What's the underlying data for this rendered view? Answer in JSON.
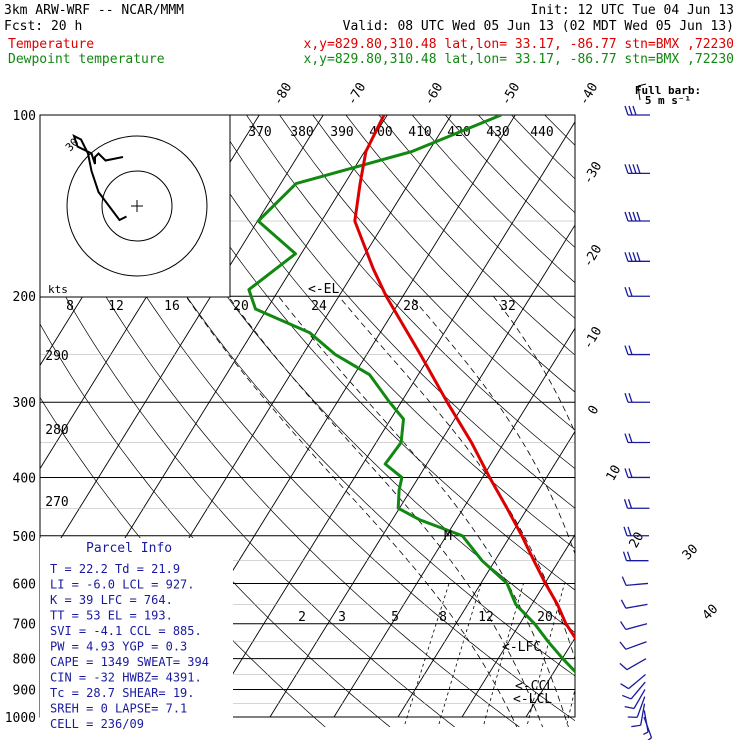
{
  "header": {
    "line1_left": "3km ARW-WRF -- NCAR/MMM",
    "line1_right": "Init: 12 UTC Tue 04 Jun 13",
    "line2_left": "Fcst:    20 h",
    "line2_right": "Valid: 08 UTC Wed 05 Jun 13 (02 MDT Wed 05 Jun 13)",
    "temp_label": "Temperature",
    "temp_loc": "x,y=829.80,310.48   lat,lon= 33.17, -86.77   stn=BMX ,72230",
    "dew_label": "Dewpoint temperature",
    "dew_loc": "x,y=829.80,310.48   lat,lon= 33.17, -86.77   stn=BMX ,72230"
  },
  "colors": {
    "temperature": "#dd0000",
    "dewpoint": "#118811",
    "barbs": "#1a1aa0",
    "header_red": "#dd0000",
    "header_green": "#118811",
    "hodo_text": "#1a1aa0",
    "dashed": "#000000"
  },
  "barb_legend": {
    "line1": "Full barb:",
    "line2": "5 m s⁻¹"
  },
  "hodograph": {
    "units": "kts",
    "ring_label": "30",
    "speed_ticks": [
      "8",
      "12",
      "16",
      "20",
      "24",
      "28",
      "32"
    ],
    "theta_ticks_top": [
      "370",
      "380",
      "390",
      "400",
      "410",
      "420",
      "430",
      "440"
    ],
    "theta_ticks_left": [
      "290",
      "280",
      "270"
    ]
  },
  "mixing_ratio_labels": [
    "2",
    "3",
    "5",
    "8",
    "12",
    "20"
  ],
  "markers": {
    "el": "<-EL",
    "lfc": "<-LFC",
    "ccl": "<-CCL",
    "lcl": "<-LCL",
    "m": "M"
  },
  "parcel_info": {
    "title": "Parcel Info",
    "rows": [
      "T  =   22.2  Td =  21.9",
      "LI =   -6.0  LCL =  927.",
      "K  =     39  LFC =  764.",
      "TT =     53  EL  =  193.",
      "SVI =  -4.1  CCL =  885.",
      "PW =   4.93  YGP =   0.3",
      "CAPE =  1349  SWEAT=  394",
      "CIN =   -32  HWBZ= 4391.",
      "Tc =   28.7  SHEAR=  19.",
      "SREH =     0  LAPSE=  7.1",
      "CELL = 236/09"
    ]
  },
  "chart_data": {
    "type": "line",
    "title": "",
    "xlabel": "",
    "ylabel": "",
    "y_scale": "log-pressure (hPa)",
    "pressure_ticks": [
      100,
      200,
      300,
      400,
      500,
      600,
      700,
      800,
      900,
      1000
    ],
    "isotherm_labels": [
      "-80",
      "-70",
      "-60",
      "-50",
      "-40",
      "-30",
      "-20",
      "-10",
      "0",
      "10",
      "20",
      "30",
      "40"
    ],
    "series": [
      {
        "name": "Temperature",
        "pressure": [
          1000,
          980,
          950,
          925,
          900,
          850,
          800,
          750,
          700,
          650,
          600,
          550,
          500,
          450,
          400,
          350,
          300,
          250,
          200,
          180,
          150,
          130,
          115,
          100
        ],
        "temperature": [
          22.2,
          21.8,
          20.2,
          19.6,
          18.7,
          16.8,
          13.8,
          10.8,
          7.2,
          4.0,
          0.1,
          -3.9,
          -8.2,
          -13.2,
          -18.9,
          -25.1,
          -32.8,
          -41.6,
          -52.6,
          -57.3,
          -64.8,
          -67.6,
          -69.8,
          -70.5
        ]
      },
      {
        "name": "Dewpoint temperature",
        "pressure": [
          1000,
          980,
          950,
          925,
          900,
          850,
          800,
          750,
          700,
          650,
          600,
          550,
          500,
          470,
          450,
          420,
          400,
          380,
          350,
          320,
          300,
          270,
          250,
          230,
          210,
          195,
          170,
          150,
          130,
          115,
          100
        ],
        "dewpoint": [
          21.9,
          21.2,
          19.6,
          18.0,
          15.7,
          14.0,
          10.1,
          6.2,
          2.3,
          -2.5,
          -5.9,
          -12.0,
          -17.5,
          -25.8,
          -30.2,
          -31.8,
          -32.6,
          -36.5,
          -36.1,
          -38.0,
          -41.8,
          -47.6,
          -54.9,
          -61.0,
          -71.8,
          -74.7,
          -70.9,
          -79.9,
          -77.6,
          -62.6,
          -52.2
        ]
      }
    ],
    "wind_barbs": {
      "pressure": [
        1000,
        975,
        950,
        925,
        900,
        875,
        850,
        800,
        750,
        700,
        650,
        600,
        550,
        500,
        450,
        400,
        350,
        300,
        250,
        200,
        175,
        150,
        125,
        100
      ],
      "speed_ms": [
        3,
        4,
        5,
        6,
        6,
        5,
        5,
        5,
        5,
        5,
        5,
        5,
        10,
        10,
        10,
        10,
        10,
        10,
        10,
        10,
        20,
        20,
        20,
        15
      ],
      "direction_deg": [
        160,
        170,
        190,
        200,
        210,
        220,
        230,
        240,
        250,
        255,
        260,
        265,
        270,
        270,
        270,
        270,
        270,
        270,
        270,
        270,
        270,
        270,
        270,
        270
      ]
    },
    "hodograph_trace": {
      "u_kts": [
        -3,
        -5,
        -8,
        -11,
        -13,
        -14,
        -16,
        -18,
        -17,
        -13,
        -12,
        -12,
        -11,
        -9,
        -4
      ],
      "v_kts": [
        -3,
        -4,
        0,
        4,
        10,
        15,
        19,
        20,
        17,
        15,
        12,
        14,
        15,
        13,
        14
      ],
      "ring_spacing_kts": 10
    }
  }
}
